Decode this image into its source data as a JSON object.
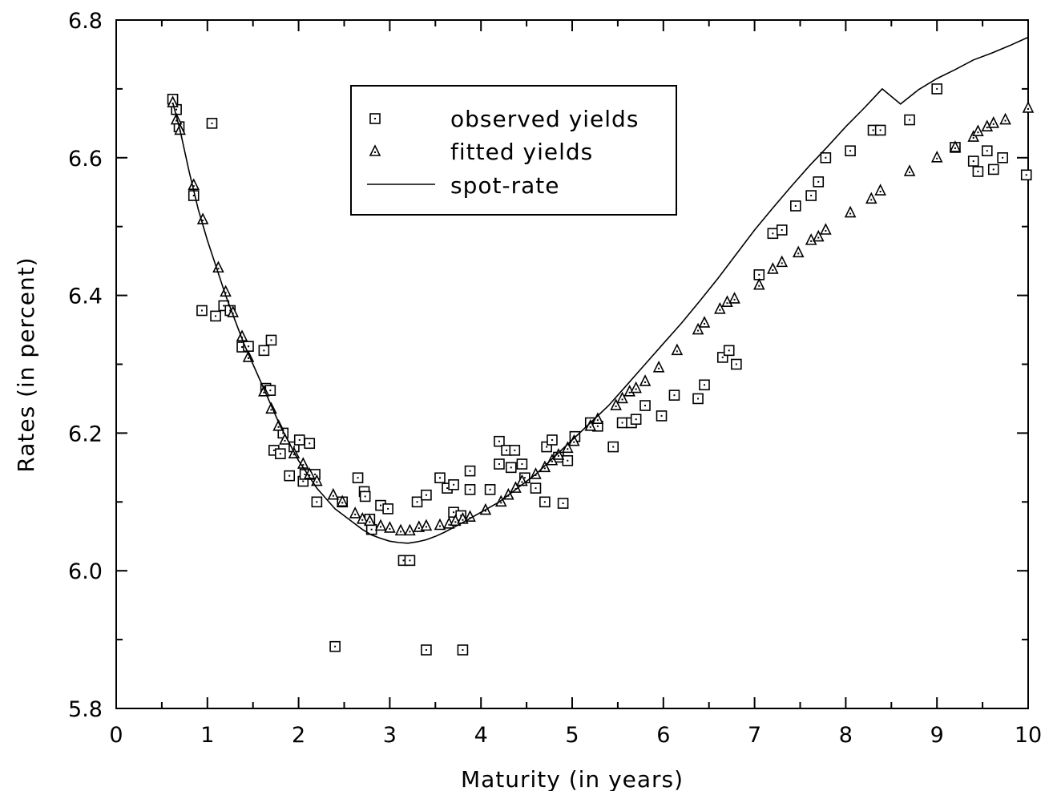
{
  "chart_data": {
    "type": "scatter",
    "title": "",
    "xlabel": "Maturity (in years)",
    "ylabel": "Rates (in percent)",
    "xlim": [
      0,
      10
    ],
    "ylim": [
      5.8,
      6.8
    ],
    "xticks": [
      "0",
      "1",
      "2",
      "3",
      "4",
      "5",
      "6",
      "7",
      "8",
      "9",
      "10"
    ],
    "yticks": [
      "5.8",
      "6.0",
      "6.2",
      "6.4",
      "6.6",
      "6.8"
    ],
    "grid": false,
    "legend_position": "top-center",
    "series": [
      {
        "name": "observed yields",
        "marker": "square",
        "points": [
          [
            0.62,
            6.685
          ],
          [
            0.66,
            6.67
          ],
          [
            0.69,
            6.645
          ],
          [
            0.85,
            6.545
          ],
          [
            0.94,
            6.378
          ],
          [
            1.05,
            6.65
          ],
          [
            1.09,
            6.37
          ],
          [
            1.18,
            6.385
          ],
          [
            1.25,
            6.378
          ],
          [
            1.38,
            6.325
          ],
          [
            1.45,
            6.326
          ],
          [
            1.62,
            6.32
          ],
          [
            1.64,
            6.265
          ],
          [
            1.69,
            6.262
          ],
          [
            1.7,
            6.335
          ],
          [
            1.73,
            6.175
          ],
          [
            1.8,
            6.17
          ],
          [
            1.83,
            6.2
          ],
          [
            1.9,
            6.138
          ],
          [
            1.95,
            6.18
          ],
          [
            2.01,
            6.19
          ],
          [
            2.05,
            6.13
          ],
          [
            2.07,
            6.14
          ],
          [
            2.12,
            6.185
          ],
          [
            2.18,
            6.14
          ],
          [
            2.2,
            6.1
          ],
          [
            2.4,
            5.89
          ],
          [
            2.48,
            6.1
          ],
          [
            2.65,
            6.135
          ],
          [
            2.72,
            6.115
          ],
          [
            2.73,
            6.108
          ],
          [
            2.78,
            6.075
          ],
          [
            2.8,
            6.06
          ],
          [
            2.9,
            6.095
          ],
          [
            2.98,
            6.09
          ],
          [
            3.15,
            6.015
          ],
          [
            3.22,
            6.015
          ],
          [
            3.3,
            6.1
          ],
          [
            3.4,
            6.11
          ],
          [
            3.4,
            5.885
          ],
          [
            3.55,
            6.135
          ],
          [
            3.63,
            6.12
          ],
          [
            3.7,
            6.125
          ],
          [
            3.7,
            6.085
          ],
          [
            3.78,
            6.08
          ],
          [
            3.8,
            5.885
          ],
          [
            3.88,
            6.145
          ],
          [
            3.88,
            6.118
          ],
          [
            4.1,
            6.118
          ],
          [
            4.2,
            6.188
          ],
          [
            4.2,
            6.155
          ],
          [
            4.28,
            6.175
          ],
          [
            4.33,
            6.15
          ],
          [
            4.37,
            6.175
          ],
          [
            4.45,
            6.155
          ],
          [
            4.48,
            6.135
          ],
          [
            4.6,
            6.12
          ],
          [
            4.7,
            6.1
          ],
          [
            4.72,
            6.18
          ],
          [
            4.78,
            6.19
          ],
          [
            4.85,
            6.165
          ],
          [
            4.9,
            6.098
          ],
          [
            4.95,
            6.16
          ],
          [
            5.03,
            6.195
          ],
          [
            5.2,
            6.215
          ],
          [
            5.28,
            6.21
          ],
          [
            5.45,
            6.18
          ],
          [
            5.55,
            6.215
          ],
          [
            5.65,
            6.215
          ],
          [
            5.7,
            6.22
          ],
          [
            5.8,
            6.24
          ],
          [
            5.98,
            6.225
          ],
          [
            6.12,
            6.255
          ],
          [
            6.38,
            6.25
          ],
          [
            6.45,
            6.27
          ],
          [
            6.65,
            6.31
          ],
          [
            6.72,
            6.32
          ],
          [
            6.8,
            6.3
          ],
          [
            7.05,
            6.43
          ],
          [
            7.2,
            6.49
          ],
          [
            7.3,
            6.495
          ],
          [
            7.45,
            6.53
          ],
          [
            7.62,
            6.545
          ],
          [
            7.7,
            6.565
          ],
          [
            7.78,
            6.6
          ],
          [
            8.05,
            6.61
          ],
          [
            8.3,
            6.64
          ],
          [
            8.38,
            6.64
          ],
          [
            8.7,
            6.655
          ],
          [
            9.0,
            6.7
          ],
          [
            9.2,
            6.615
          ],
          [
            9.4,
            6.595
          ],
          [
            9.45,
            6.58
          ],
          [
            9.55,
            6.61
          ],
          [
            9.62,
            6.583
          ],
          [
            9.72,
            6.6
          ],
          [
            9.98,
            6.575
          ]
        ]
      },
      {
        "name": "fitted yields",
        "marker": "triangle",
        "points": [
          [
            0.62,
            6.68
          ],
          [
            0.66,
            6.655
          ],
          [
            0.7,
            6.64
          ],
          [
            0.85,
            6.56
          ],
          [
            0.95,
            6.51
          ],
          [
            1.12,
            6.44
          ],
          [
            1.2,
            6.405
          ],
          [
            1.28,
            6.375
          ],
          [
            1.38,
            6.34
          ],
          [
            1.45,
            6.31
          ],
          [
            1.62,
            6.26
          ],
          [
            1.7,
            6.235
          ],
          [
            1.78,
            6.21
          ],
          [
            1.85,
            6.19
          ],
          [
            1.95,
            6.17
          ],
          [
            2.05,
            6.155
          ],
          [
            2.12,
            6.14
          ],
          [
            2.2,
            6.13
          ],
          [
            2.38,
            6.11
          ],
          [
            2.48,
            6.1
          ],
          [
            2.62,
            6.083
          ],
          [
            2.7,
            6.075
          ],
          [
            2.78,
            6.072
          ],
          [
            2.9,
            6.065
          ],
          [
            3.0,
            6.062
          ],
          [
            3.12,
            6.058
          ],
          [
            3.22,
            6.058
          ],
          [
            3.32,
            6.063
          ],
          [
            3.4,
            6.065
          ],
          [
            3.55,
            6.066
          ],
          [
            3.65,
            6.068
          ],
          [
            3.72,
            6.072
          ],
          [
            3.8,
            6.075
          ],
          [
            3.88,
            6.078
          ],
          [
            4.05,
            6.088
          ],
          [
            4.22,
            6.1
          ],
          [
            4.3,
            6.11
          ],
          [
            4.38,
            6.12
          ],
          [
            4.45,
            6.13
          ],
          [
            4.6,
            6.14
          ],
          [
            4.7,
            6.15
          ],
          [
            4.78,
            6.16
          ],
          [
            4.85,
            6.168
          ],
          [
            4.95,
            6.178
          ],
          [
            5.02,
            6.188
          ],
          [
            5.2,
            6.21
          ],
          [
            5.28,
            6.22
          ],
          [
            5.48,
            6.24
          ],
          [
            5.55,
            6.25
          ],
          [
            5.63,
            6.26
          ],
          [
            5.7,
            6.265
          ],
          [
            5.8,
            6.275
          ],
          [
            5.95,
            6.295
          ],
          [
            6.15,
            6.32
          ],
          [
            6.38,
            6.35
          ],
          [
            6.45,
            6.36
          ],
          [
            6.62,
            6.38
          ],
          [
            6.7,
            6.39
          ],
          [
            6.78,
            6.395
          ],
          [
            7.05,
            6.415
          ],
          [
            7.2,
            6.438
          ],
          [
            7.3,
            6.448
          ],
          [
            7.48,
            6.462
          ],
          [
            7.62,
            6.48
          ],
          [
            7.7,
            6.485
          ],
          [
            7.78,
            6.495
          ],
          [
            8.05,
            6.52
          ],
          [
            8.28,
            6.54
          ],
          [
            8.38,
            6.552
          ],
          [
            8.7,
            6.58
          ],
          [
            9.0,
            6.6
          ],
          [
            9.2,
            6.615
          ],
          [
            9.4,
            6.63
          ],
          [
            9.45,
            6.638
          ],
          [
            9.55,
            6.645
          ],
          [
            9.62,
            6.65
          ],
          [
            9.75,
            6.655
          ],
          [
            10.0,
            6.672
          ]
        ]
      },
      {
        "name": "spot-rate",
        "marker": "line",
        "points": [
          [
            0.62,
            6.68
          ],
          [
            0.7,
            6.64
          ],
          [
            0.8,
            6.58
          ],
          [
            0.9,
            6.525
          ],
          [
            1.0,
            6.48
          ],
          [
            1.1,
            6.44
          ],
          [
            1.2,
            6.4
          ],
          [
            1.3,
            6.365
          ],
          [
            1.4,
            6.33
          ],
          [
            1.5,
            6.3
          ],
          [
            1.6,
            6.27
          ],
          [
            1.7,
            6.24
          ],
          [
            1.8,
            6.21
          ],
          [
            1.9,
            6.185
          ],
          [
            2.0,
            6.16
          ],
          [
            2.1,
            6.14
          ],
          [
            2.2,
            6.12
          ],
          [
            2.3,
            6.105
          ],
          [
            2.4,
            6.09
          ],
          [
            2.5,
            6.08
          ],
          [
            2.6,
            6.07
          ],
          [
            2.7,
            6.06
          ],
          [
            2.8,
            6.052
          ],
          [
            2.9,
            6.047
          ],
          [
            3.0,
            6.043
          ],
          [
            3.1,
            6.041
          ],
          [
            3.2,
            6.04
          ],
          [
            3.3,
            6.042
          ],
          [
            3.4,
            6.045
          ],
          [
            3.5,
            6.05
          ],
          [
            3.6,
            6.056
          ],
          [
            3.8,
            6.07
          ],
          [
            4.0,
            6.085
          ],
          [
            4.2,
            6.1
          ],
          [
            4.4,
            6.12
          ],
          [
            4.6,
            6.14
          ],
          [
            4.8,
            6.165
          ],
          [
            5.0,
            6.19
          ],
          [
            5.2,
            6.215
          ],
          [
            5.4,
            6.24
          ],
          [
            5.6,
            6.27
          ],
          [
            5.8,
            6.3
          ],
          [
            6.0,
            6.33
          ],
          [
            6.2,
            6.36
          ],
          [
            6.4,
            6.392
          ],
          [
            6.6,
            6.425
          ],
          [
            6.8,
            6.46
          ],
          [
            7.0,
            6.495
          ],
          [
            7.2,
            6.527
          ],
          [
            7.4,
            6.558
          ],
          [
            7.6,
            6.588
          ],
          [
            7.8,
            6.616
          ],
          [
            8.0,
            6.645
          ],
          [
            8.2,
            6.672
          ],
          [
            8.4,
            6.7
          ],
          [
            8.6,
            6.678
          ],
          [
            8.8,
            6.699
          ],
          [
            9.0,
            6.715
          ],
          [
            9.2,
            6.728
          ],
          [
            9.4,
            6.742
          ],
          [
            9.6,
            6.752
          ],
          [
            9.8,
            6.763
          ],
          [
            10.0,
            6.775
          ]
        ]
      }
    ]
  }
}
